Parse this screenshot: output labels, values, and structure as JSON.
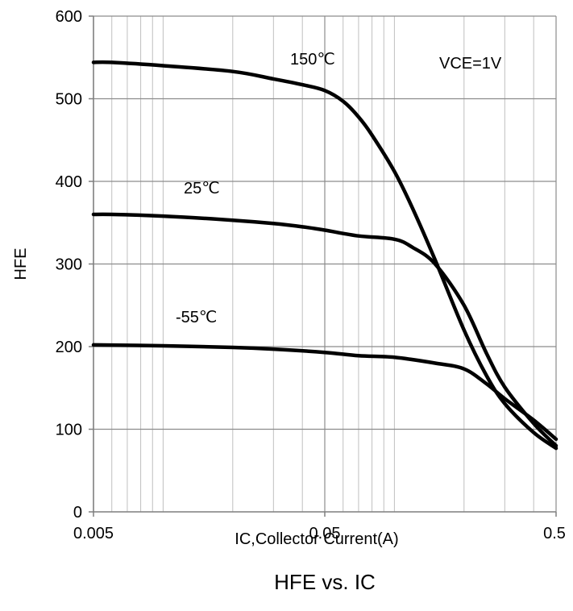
{
  "chart_data": {
    "type": "line",
    "title": "HFE vs. IC",
    "xlabel": "IC,Collector Current(A)",
    "ylabel": "HFE",
    "x_scale": "log",
    "xlim": [
      0.005,
      0.5
    ],
    "ylim": [
      0,
      600
    ],
    "x_ticks": [
      0.005,
      0.05,
      0.5
    ],
    "x_tick_labels": [
      "0.005",
      "0.05",
      "0.5"
    ],
    "y_ticks": [
      0,
      100,
      200,
      300,
      400,
      500,
      600
    ],
    "y_tick_labels": [
      "0",
      "100",
      "200",
      "300",
      "400",
      "500",
      "600"
    ],
    "grid": true,
    "legend": "none",
    "annotation": "VCE=1V",
    "colors": {
      "line": "#000000",
      "grid": "#bfbfbf",
      "axis": "#7f7f7f"
    },
    "series": [
      {
        "name": "150℃",
        "x": [
          0.005,
          0.006,
          0.01,
          0.02,
          0.03,
          0.04,
          0.05,
          0.06,
          0.07,
          0.08,
          0.1,
          0.12,
          0.15,
          0.2,
          0.25,
          0.3,
          0.4,
          0.5
        ],
        "y": [
          544,
          544,
          540,
          533,
          524,
          517,
          510,
          497,
          478,
          456,
          412,
          367,
          305,
          220,
          165,
          131,
          96,
          77
        ]
      },
      {
        "name": "25℃",
        "x": [
          0.005,
          0.006,
          0.01,
          0.02,
          0.03,
          0.04,
          0.05,
          0.07,
          0.1,
          0.12,
          0.15,
          0.2,
          0.25,
          0.3,
          0.4,
          0.5
        ],
        "y": [
          360,
          360,
          358,
          353,
          349,
          345,
          341,
          334,
          330,
          320,
          300,
          250,
          192,
          151,
          107,
          80
        ]
      },
      {
        "name": "-55℃",
        "x": [
          0.005,
          0.01,
          0.02,
          0.03,
          0.05,
          0.07,
          0.1,
          0.15,
          0.2,
          0.25,
          0.3,
          0.4,
          0.5
        ],
        "y": [
          202,
          201,
          199,
          197,
          193,
          189,
          187,
          180,
          173,
          155,
          137,
          111,
          88
        ]
      }
    ]
  }
}
